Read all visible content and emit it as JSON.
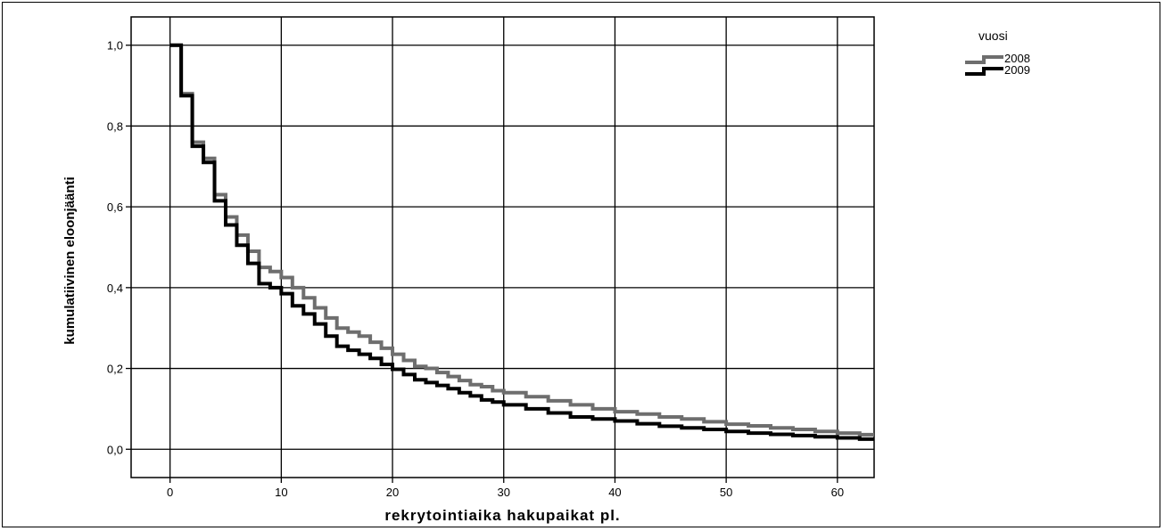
{
  "chart_data": {
    "type": "line",
    "xlabel": "rekrytointiaika hakupaikat pl.",
    "ylabel": "kumulatiivinen eloonjäänti",
    "xlim": [
      -3.5,
      63.3
    ],
    "ylim": [
      -0.07,
      1.07
    ],
    "x_ticks": [
      0,
      10,
      20,
      30,
      40,
      50,
      60
    ],
    "x_tick_labels": [
      "0",
      "10",
      "20",
      "30",
      "40",
      "50",
      "60"
    ],
    "y_ticks": [
      0.0,
      0.2,
      0.4,
      0.6,
      0.8,
      1.0
    ],
    "y_tick_labels": [
      "0,0",
      "0,2",
      "0,4",
      "0,6",
      "0,8",
      "1,0"
    ],
    "grid": true,
    "legend": {
      "title": "vuosi",
      "placement": "top-right"
    },
    "step": true,
    "series": [
      {
        "name": "2008",
        "color": "#6e6e6e",
        "x": [
          0,
          1,
          2,
          3,
          4,
          5,
          6,
          7,
          8,
          9,
          10,
          11,
          12,
          13,
          14,
          15,
          16,
          17,
          18,
          19,
          20,
          21,
          22,
          23,
          24,
          25,
          26,
          27,
          28,
          29,
          30,
          32,
          34,
          36,
          38,
          40,
          42,
          44,
          46,
          48,
          50,
          52,
          54,
          56,
          58,
          60,
          62,
          63.3
        ],
        "y": [
          1.0,
          0.88,
          0.76,
          0.72,
          0.63,
          0.575,
          0.53,
          0.49,
          0.45,
          0.44,
          0.425,
          0.4,
          0.375,
          0.35,
          0.325,
          0.3,
          0.29,
          0.28,
          0.265,
          0.25,
          0.235,
          0.22,
          0.205,
          0.2,
          0.19,
          0.18,
          0.17,
          0.16,
          0.155,
          0.145,
          0.14,
          0.13,
          0.12,
          0.11,
          0.1,
          0.093,
          0.087,
          0.08,
          0.075,
          0.068,
          0.062,
          0.058,
          0.053,
          0.049,
          0.044,
          0.04,
          0.036,
          0.036
        ]
      },
      {
        "name": "2009",
        "color": "#000000",
        "x": [
          0,
          1,
          2,
          3,
          4,
          5,
          6,
          7,
          8,
          9,
          10,
          11,
          12,
          13,
          14,
          15,
          16,
          17,
          18,
          19,
          20,
          21,
          22,
          23,
          24,
          25,
          26,
          27,
          28,
          29,
          30,
          32,
          34,
          36,
          38,
          40,
          42,
          44,
          46,
          48,
          50,
          52,
          54,
          56,
          58,
          60,
          62,
          63.3
        ],
        "y": [
          1.0,
          0.875,
          0.75,
          0.71,
          0.615,
          0.555,
          0.505,
          0.46,
          0.41,
          0.4,
          0.385,
          0.355,
          0.335,
          0.31,
          0.28,
          0.255,
          0.245,
          0.235,
          0.225,
          0.21,
          0.198,
          0.185,
          0.172,
          0.165,
          0.158,
          0.15,
          0.14,
          0.132,
          0.122,
          0.117,
          0.11,
          0.1,
          0.09,
          0.08,
          0.075,
          0.07,
          0.063,
          0.057,
          0.053,
          0.049,
          0.044,
          0.04,
          0.037,
          0.034,
          0.031,
          0.028,
          0.025,
          0.025
        ]
      }
    ]
  }
}
